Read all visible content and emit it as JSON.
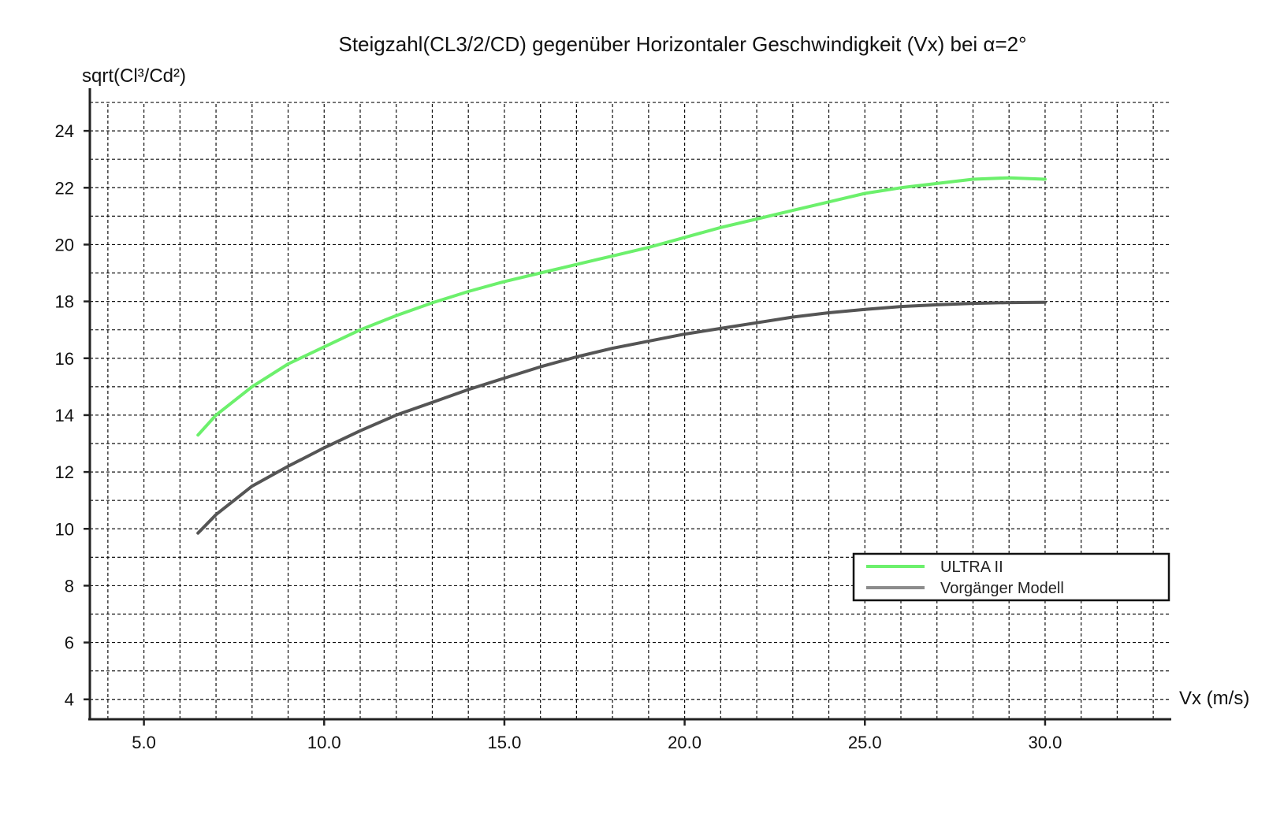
{
  "chart_data": {
    "type": "line",
    "title": "Steigzahl(CL3/2/CD) gegenüber Horizontaler Geschwindigkeit (Vx) bei α=2°",
    "xlabel": "Vx (m/s)",
    "ylabel": "sqrt(Cl³/Cd²)",
    "xlim": [
      3.5,
      33.5
    ],
    "ylim": [
      3.3,
      25.5
    ],
    "x_minor_step": 1.0,
    "y_minor_step": 1.0,
    "x_ticks": [
      5.0,
      10.0,
      15.0,
      20.0,
      25.0,
      30.0
    ],
    "x_tick_labels": [
      "5.0",
      "10.0",
      "15.0",
      "20.0",
      "25.0",
      "30.0"
    ],
    "y_ticks": [
      4,
      6,
      8,
      10,
      12,
      14,
      16,
      18,
      20,
      22,
      24
    ],
    "y_tick_labels": [
      "4",
      "6",
      "8",
      "10",
      "12",
      "14",
      "16",
      "18",
      "20",
      "22",
      "24"
    ],
    "grid": true,
    "legend_position": "lower-right",
    "series": [
      {
        "name": "ULTRA II",
        "color": "#6cf06c",
        "x": [
          6.5,
          7.0,
          8.0,
          9.0,
          10.0,
          11.0,
          12.0,
          13.0,
          14.0,
          15.0,
          16.0,
          17.0,
          18.0,
          19.0,
          20.0,
          21.0,
          22.0,
          23.0,
          24.0,
          25.0,
          26.0,
          27.0,
          28.0,
          29.0,
          30.0
        ],
        "y": [
          13.3,
          14.0,
          15.0,
          15.8,
          16.4,
          17.0,
          17.5,
          17.95,
          18.35,
          18.7,
          19.0,
          19.3,
          19.6,
          19.9,
          20.25,
          20.6,
          20.9,
          21.2,
          21.5,
          21.8,
          22.0,
          22.15,
          22.3,
          22.35,
          22.3
        ]
      },
      {
        "name": "Vorgänger Modell",
        "color": "#555555",
        "legend_color": "#8c8c8c",
        "x": [
          6.5,
          7.0,
          8.0,
          9.0,
          10.0,
          11.0,
          12.0,
          13.0,
          14.0,
          15.0,
          16.0,
          17.0,
          18.0,
          19.0,
          20.0,
          21.0,
          22.0,
          23.0,
          24.0,
          25.0,
          26.0,
          27.0,
          28.0,
          29.0,
          30.0
        ],
        "y": [
          9.85,
          10.5,
          11.5,
          12.2,
          12.85,
          13.45,
          14.0,
          14.45,
          14.9,
          15.3,
          15.7,
          16.05,
          16.35,
          16.6,
          16.85,
          17.05,
          17.25,
          17.45,
          17.6,
          17.72,
          17.82,
          17.88,
          17.93,
          17.96,
          17.97
        ]
      }
    ]
  }
}
